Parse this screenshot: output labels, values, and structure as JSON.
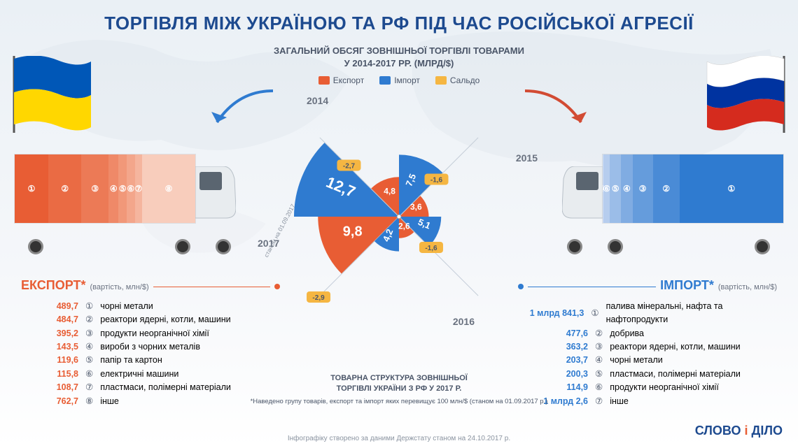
{
  "title": "ТОРГІВЛЯ МІЖ УКРАЇНОЮ ТА РФ ПІД ЧАС РОСІЙСЬКОЇ АГРЕСІЇ",
  "subtitle_l1": "ЗАГАЛЬНИЙ ОБСЯГ ЗОВНІШНЬОЇ ТОРГІВЛІ ТОВАРАМИ",
  "subtitle_l2": "У 2014‑2017 РР. (МЛРД/$)",
  "legend": {
    "export": "Експорт",
    "import": "Імпорт",
    "saldo": "Сальдо"
  },
  "arrow_left_color": "#2f7bd0",
  "arrow_right_color": "#d24b33",
  "colors": {
    "export": "#e85d34",
    "import": "#2f7bd0",
    "saldo": "#f5b642",
    "title": "#1d4a8f",
    "text_muted": "#6a7280"
  },
  "flags": {
    "left": {
      "stripes": [
        "#0057b7",
        "#ffd700"
      ],
      "type": "horizontal2"
    },
    "right": {
      "stripes": [
        "#ffffff",
        "#0033a0",
        "#d52b1e"
      ],
      "type": "horizontal3"
    }
  },
  "truck_left": {
    "segments": [
      {
        "num": "①",
        "w": 18.6,
        "color": "#e85d34"
      },
      {
        "num": "②",
        "w": 18.4,
        "color": "#ea6b44"
      },
      {
        "num": "③",
        "w": 15.0,
        "color": "#ec7a56"
      },
      {
        "num": "④",
        "w": 5.5,
        "color": "#ef8968"
      },
      {
        "num": "⑤",
        "w": 4.6,
        "color": "#f19879"
      },
      {
        "num": "⑥",
        "w": 4.4,
        "color": "#f3a68b"
      },
      {
        "num": "⑦",
        "w": 4.1,
        "color": "#f5b59e"
      },
      {
        "num": "⑧",
        "w": 29.4,
        "color": "#f8cdbc"
      }
    ]
  },
  "truck_right": {
    "segments": [
      {
        "num": "①",
        "w": 57.4,
        "color": "#2f7bd0"
      },
      {
        "num": "②",
        "w": 14.8,
        "color": "#4a8bd6"
      },
      {
        "num": "③",
        "w": 11.3,
        "color": "#659cdc"
      },
      {
        "num": "④",
        "w": 6.3,
        "color": "#80ace2"
      },
      {
        "num": "⑤",
        "w": 6.2,
        "color": "#9bbde8"
      },
      {
        "num": "⑥",
        "w": 3.6,
        "color": "#b6cdee"
      },
      {
        "num": "⑦",
        "w": 0.4,
        "color": "#d1def4"
      }
    ]
  },
  "polar": {
    "max_r": 150,
    "years": [
      {
        "year": "2014",
        "export": 9.8,
        "import": 12.7,
        "saldo": "-2,9",
        "start": 225,
        "end": 315
      },
      {
        "year": "2015",
        "export": 4.8,
        "import": 7.5,
        "saldo": "-2,7",
        "start": 315,
        "end": 45
      },
      {
        "year": "2016",
        "export": 3.6,
        "import": 5.1,
        "saldo": "-1,6",
        "start": 45,
        "end": 135
      },
      {
        "year": "2017",
        "export": 2.6,
        "import": 4.2,
        "saldo": "-1,6",
        "start": 135,
        "end": 225,
        "note": "станом на 01.09.2017"
      }
    ],
    "value_labels": {
      "y2014_exp": "9,8",
      "y2014_imp": "12,7",
      "y2015_exp": "4,8",
      "y2015_imp": "7,5",
      "y2016_exp": "3,6",
      "y2016_imp": "5,1",
      "y2017_exp": "2,6",
      "y2017_imp": "4,2"
    }
  },
  "export_list": {
    "head": "ЕКСПОРТ*",
    "head_note": "(вартість, млн/$)",
    "color": "#e85d34",
    "items": [
      {
        "val": "489,7",
        "num": "①",
        "label": "чорні метали"
      },
      {
        "val": "484,7",
        "num": "②",
        "label": "реактори ядерні, котли, машини"
      },
      {
        "val": "395,2",
        "num": "③",
        "label": "продукти неорганічної хімії"
      },
      {
        "val": "143,5",
        "num": "④",
        "label": "вироби з чорних металів"
      },
      {
        "val": "119,6",
        "num": "⑤",
        "label": "папір та картон"
      },
      {
        "val": "115,8",
        "num": "⑥",
        "label": "електричні машини"
      },
      {
        "val": "108,7",
        "num": "⑦",
        "label": "пластмаси, полімерні матеріали"
      },
      {
        "val": "762,7",
        "num": "⑧",
        "label": "інше"
      }
    ]
  },
  "import_list": {
    "head": "ІМПОРТ*",
    "head_note": "(вартість, млн/$)",
    "color": "#2f7bd0",
    "items": [
      {
        "val": "1 млрд 841,3",
        "num": "①",
        "label": "палива мінеральні, нафта та нафтопродукти"
      },
      {
        "val": "477,6",
        "num": "②",
        "label": "добрива"
      },
      {
        "val": "363,2",
        "num": "③",
        "label": "реактори ядерні, котли, машини"
      },
      {
        "val": "203,7",
        "num": "④",
        "label": "чорні метали"
      },
      {
        "val": "200,3",
        "num": "⑤",
        "label": "пластмаси, полімерні матеріали"
      },
      {
        "val": "114,9",
        "num": "⑥",
        "label": "продукти неорганічної хімії"
      },
      {
        "val": "1 млрд 2,6",
        "num": "⑦",
        "label": "інше"
      }
    ]
  },
  "chart_note_l1": "ТОВАРНА СТРУКТУРА ЗОВНІШНЬОЇ",
  "chart_note_l2": "ТОРГІВЛІ УКРАЇНИ З РФ У 2017 Р.",
  "chart_note_l3": "*Наведено групу товарів, експорт та імпорт яких перевищує 100 млн/$ (станом на 01.09.2017 р.)",
  "footer": "Інфографіку створено за даними Держстату станом на 24.10.2017 р.",
  "logo_l": "СЛОВО",
  "logo_i": "і",
  "logo_r": "ДІЛО"
}
